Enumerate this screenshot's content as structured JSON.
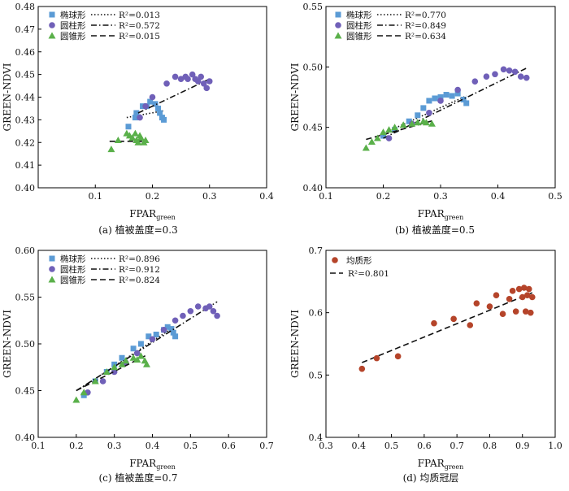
{
  "chart_data": [
    {
      "type": "scatter",
      "caption": "(a) 植被盖度=0.3",
      "xlabel": "FPAR",
      "xlabel_sub": "green",
      "ylabel": "GREEN-NDVI",
      "xlim": [
        0,
        0.4
      ],
      "ylim": [
        0.4,
        0.48
      ],
      "xticks": [
        "0.1",
        "0.2",
        "0.3",
        "0.4"
      ],
      "yticks": [
        "0.40",
        "0.41",
        "0.42",
        "0.43",
        "0.44",
        "0.45",
        "0.46",
        "0.47",
        "0.48"
      ],
      "series": [
        {
          "name": "椭球形",
          "r2_label": "R²=0.013",
          "marker": "square",
          "color": "#5b9bd5",
          "line": "dotted",
          "points": [
            [
              0.17,
              0.431
            ],
            [
              0.172,
              0.433
            ],
            [
              0.183,
              0.436
            ],
            [
              0.19,
              0.436
            ],
            [
              0.196,
              0.438
            ],
            [
              0.205,
              0.437
            ],
            [
              0.21,
              0.435
            ],
            [
              0.213,
              0.433
            ],
            [
              0.217,
              0.431
            ],
            [
              0.22,
              0.43
            ],
            [
              0.158,
              0.427
            ]
          ],
          "fit": [
            [
              0.155,
              0.431
            ],
            [
              0.22,
              0.434
            ]
          ]
        },
        {
          "name": "圆柱形",
          "r2_label": "R²=0.572",
          "marker": "circle",
          "color": "#7060b8",
          "line": "dashdot",
          "points": [
            [
              0.178,
              0.431
            ],
            [
              0.188,
              0.436
            ],
            [
              0.2,
              0.44
            ],
            [
              0.225,
              0.446
            ],
            [
              0.24,
              0.449
            ],
            [
              0.25,
              0.448
            ],
            [
              0.258,
              0.449
            ],
            [
              0.262,
              0.448
            ],
            [
              0.27,
              0.45
            ],
            [
              0.275,
              0.448
            ],
            [
              0.28,
              0.447
            ],
            [
              0.285,
              0.449
            ],
            [
              0.29,
              0.446
            ],
            [
              0.295,
              0.444
            ],
            [
              0.3,
              0.447
            ]
          ],
          "fit": [
            [
              0.175,
              0.433
            ],
            [
              0.3,
              0.448
            ]
          ]
        },
        {
          "name": "圆锥形",
          "r2_label": "R²=0.015",
          "marker": "triangle",
          "color": "#5ab04a",
          "line": "dashed",
          "points": [
            [
              0.128,
              0.417
            ],
            [
              0.14,
              0.421
            ],
            [
              0.155,
              0.424
            ],
            [
              0.16,
              0.423
            ],
            [
              0.165,
              0.422
            ],
            [
              0.17,
              0.424
            ],
            [
              0.172,
              0.421
            ],
            [
              0.175,
              0.42
            ],
            [
              0.178,
              0.423
            ],
            [
              0.18,
              0.422
            ],
            [
              0.185,
              0.42
            ],
            [
              0.188,
              0.421
            ]
          ],
          "fit": [
            [
              0.125,
              0.4205
            ],
            [
              0.19,
              0.4205
            ]
          ]
        }
      ]
    },
    {
      "type": "scatter",
      "caption": "(b) 植被盖度=0.5",
      "xlabel": "FPAR",
      "xlabel_sub": "green",
      "ylabel": "GREEN-NDVI",
      "xlim": [
        0.1,
        0.5
      ],
      "ylim": [
        0.4,
        0.55
      ],
      "xticks": [
        "0.1",
        "0.2",
        "0.3",
        "0.4",
        "0.5"
      ],
      "yticks": [
        "0.40",
        "0.45",
        "0.50",
        "0.55"
      ],
      "series": [
        {
          "name": "椭球形",
          "r2_label": "R²=0.770",
          "marker": "square",
          "color": "#5b9bd5",
          "line": "dotted",
          "points": [
            [
              0.2,
              0.443
            ],
            [
              0.22,
              0.448
            ],
            [
              0.245,
              0.455
            ],
            [
              0.26,
              0.46
            ],
            [
              0.27,
              0.466
            ],
            [
              0.28,
              0.472
            ],
            [
              0.29,
              0.474
            ],
            [
              0.3,
              0.475
            ],
            [
              0.31,
              0.477
            ],
            [
              0.32,
              0.476
            ],
            [
              0.33,
              0.478
            ],
            [
              0.34,
              0.473
            ],
            [
              0.345,
              0.47
            ]
          ],
          "fit": [
            [
              0.2,
              0.445
            ],
            [
              0.345,
              0.476
            ]
          ]
        },
        {
          "name": "圆柱形",
          "r2_label": "R²=0.849",
          "marker": "circle",
          "color": "#7060b8",
          "line": "dashdot",
          "points": [
            [
              0.21,
              0.441
            ],
            [
              0.25,
              0.453
            ],
            [
              0.28,
              0.462
            ],
            [
              0.3,
              0.472
            ],
            [
              0.33,
              0.481
            ],
            [
              0.36,
              0.488
            ],
            [
              0.38,
              0.492
            ],
            [
              0.395,
              0.494
            ],
            [
              0.41,
              0.498
            ],
            [
              0.42,
              0.497
            ],
            [
              0.43,
              0.496
            ],
            [
              0.44,
              0.492
            ],
            [
              0.45,
              0.491
            ]
          ],
          "fit": [
            [
              0.2,
              0.441
            ],
            [
              0.45,
              0.499
            ]
          ]
        },
        {
          "name": "圆锥形",
          "r2_label": "R²=0.634",
          "marker": "triangle",
          "color": "#5ab04a",
          "line": "dashed",
          "points": [
            [
              0.17,
              0.433
            ],
            [
              0.18,
              0.438
            ],
            [
              0.19,
              0.441
            ],
            [
              0.2,
              0.446
            ],
            [
              0.21,
              0.448
            ],
            [
              0.22,
              0.45
            ],
            [
              0.235,
              0.452
            ],
            [
              0.25,
              0.453
            ],
            [
              0.26,
              0.454
            ],
            [
              0.27,
              0.455
            ],
            [
              0.275,
              0.454
            ],
            [
              0.285,
              0.453
            ]
          ],
          "fit": [
            [
              0.17,
              0.44
            ],
            [
              0.29,
              0.456
            ]
          ]
        }
      ]
    },
    {
      "type": "scatter",
      "caption": "(c) 植被盖度=0.7",
      "xlabel": "FPAR",
      "xlabel_sub": "green",
      "ylabel": "GREEN-NDVI",
      "xlim": [
        0.1,
        0.7
      ],
      "ylim": [
        0.4,
        0.6
      ],
      "xticks": [
        "0.1",
        "0.2",
        "0.3",
        "0.4",
        "0.5",
        "0.6",
        "0.7"
      ],
      "yticks": [
        "0.40",
        "0.45",
        "0.50",
        "0.55",
        "0.60"
      ],
      "series": [
        {
          "name": "椭球形",
          "r2_label": "R²=0.896",
          "marker": "square",
          "color": "#5b9bd5",
          "line": "dotted",
          "points": [
            [
              0.22,
              0.445
            ],
            [
              0.25,
              0.46
            ],
            [
              0.28,
              0.47
            ],
            [
              0.3,
              0.478
            ],
            [
              0.32,
              0.485
            ],
            [
              0.35,
              0.495
            ],
            [
              0.37,
              0.5
            ],
            [
              0.39,
              0.508
            ],
            [
              0.41,
              0.51
            ],
            [
              0.43,
              0.515
            ],
            [
              0.44,
              0.518
            ],
            [
              0.45,
              0.516
            ],
            [
              0.455,
              0.512
            ],
            [
              0.46,
              0.508
            ]
          ],
          "fit": [
            [
              0.21,
              0.452
            ],
            [
              0.46,
              0.519
            ]
          ]
        },
        {
          "name": "圆柱形",
          "r2_label": "R²=0.912",
          "marker": "circle",
          "color": "#7060b8",
          "line": "dashdot",
          "points": [
            [
              0.23,
              0.448
            ],
            [
              0.27,
              0.46
            ],
            [
              0.3,
              0.47
            ],
            [
              0.33,
              0.48
            ],
            [
              0.36,
              0.49
            ],
            [
              0.4,
              0.505
            ],
            [
              0.43,
              0.515
            ],
            [
              0.46,
              0.525
            ],
            [
              0.48,
              0.53
            ],
            [
              0.5,
              0.535
            ],
            [
              0.52,
              0.54
            ],
            [
              0.54,
              0.538
            ],
            [
              0.55,
              0.54
            ],
            [
              0.56,
              0.535
            ],
            [
              0.57,
              0.53
            ]
          ],
          "fit": [
            [
              0.2,
              0.45
            ],
            [
              0.57,
              0.545
            ]
          ]
        },
        {
          "name": "圆锥形",
          "r2_label": "R²=0.824",
          "marker": "triangle",
          "color": "#5ab04a",
          "line": "dashed",
          "points": [
            [
              0.2,
              0.44
            ],
            [
              0.22,
              0.448
            ],
            [
              0.25,
              0.46
            ],
            [
              0.28,
              0.47
            ],
            [
              0.3,
              0.475
            ],
            [
              0.32,
              0.478
            ],
            [
              0.33,
              0.482
            ],
            [
              0.35,
              0.485
            ],
            [
              0.36,
              0.483
            ],
            [
              0.37,
              0.487
            ],
            [
              0.38,
              0.482
            ],
            [
              0.385,
              0.478
            ]
          ],
          "fit": [
            [
              0.2,
              0.45
            ],
            [
              0.385,
              0.488
            ]
          ]
        }
      ]
    },
    {
      "type": "scatter",
      "caption": "(d) 均质冠层",
      "xlabel": "FPAR",
      "xlabel_sub": "green",
      "ylabel": "GREEN-NDVI",
      "xlim": [
        0.3,
        1.0
      ],
      "ylim": [
        0.4,
        0.7
      ],
      "xticks": [
        "0.3",
        "0.4",
        "0.5",
        "0.6",
        "0.7",
        "0.8",
        "0.9",
        "1.0"
      ],
      "yticks": [
        "0.4",
        "0.5",
        "0.6",
        "0.7"
      ],
      "series": [
        {
          "name": "均质形",
          "r2_label": "R²=0.801",
          "marker": "circle",
          "color": "#b5442a",
          "line": "dashed",
          "points": [
            [
              0.41,
              0.51
            ],
            [
              0.455,
              0.527
            ],
            [
              0.52,
              0.53
            ],
            [
              0.63,
              0.583
            ],
            [
              0.69,
              0.59
            ],
            [
              0.74,
              0.58
            ],
            [
              0.76,
              0.615
            ],
            [
              0.8,
              0.61
            ],
            [
              0.82,
              0.628
            ],
            [
              0.84,
              0.598
            ],
            [
              0.86,
              0.622
            ],
            [
              0.87,
              0.635
            ],
            [
              0.88,
              0.602
            ],
            [
              0.89,
              0.638
            ],
            [
              0.9,
              0.625
            ],
            [
              0.905,
              0.64
            ],
            [
              0.91,
              0.602
            ],
            [
              0.915,
              0.628
            ],
            [
              0.92,
              0.638
            ],
            [
              0.925,
              0.6
            ],
            [
              0.93,
              0.625
            ]
          ],
          "fit": [
            [
              0.41,
              0.52
            ],
            [
              0.93,
              0.632
            ]
          ]
        }
      ]
    }
  ]
}
